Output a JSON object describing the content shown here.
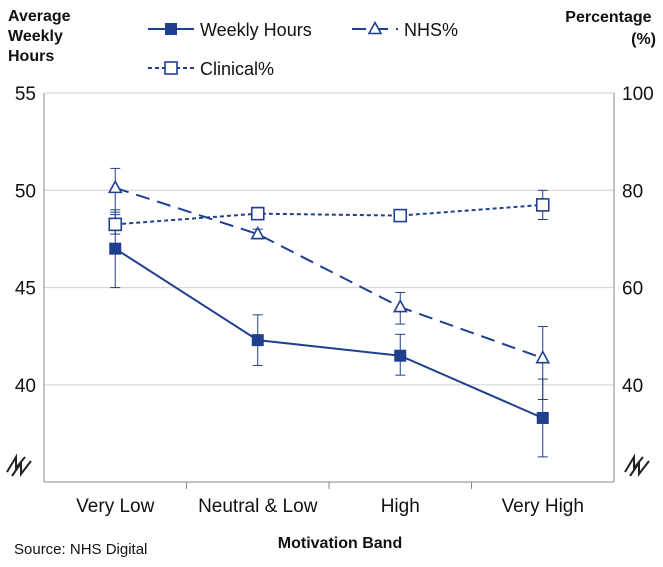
{
  "chart_data": {
    "type": "line",
    "categories": [
      "Very Low",
      "Neutral & Low",
      "High",
      "Very High"
    ],
    "xlabel": "Motivation Band",
    "ylabel_left": [
      "Average",
      "Weekly",
      "Hours"
    ],
    "ylabel_right": [
      "Percentage",
      "(%)"
    ],
    "left_axis": {
      "ticks": [
        "55",
        "50",
        "45",
        "40"
      ],
      "tick_values": [
        55,
        50,
        45,
        40
      ]
    },
    "right_axis": {
      "ticks": [
        "100",
        "80",
        "60",
        "40"
      ],
      "tick_values": [
        100,
        80,
        60,
        40
      ]
    },
    "grid": true,
    "legend_position": "top",
    "source": "Source: NHS Digital",
    "series": [
      {
        "name": "Weekly Hours",
        "axis": "left",
        "style": "solid",
        "marker": "filled-square",
        "color": "#1f3f8f",
        "values": [
          47.0,
          42.3,
          41.5,
          38.3
        ],
        "errors": [
          [
            45.0,
            49.0
          ],
          [
            41.0,
            43.6
          ],
          [
            40.5,
            42.6
          ],
          [
            36.3,
            40.3
          ]
        ]
      },
      {
        "name": "NHS%",
        "axis": "right",
        "style": "dashed",
        "marker": "open-triangle",
        "color": "#1f3f8f",
        "values": [
          80.5,
          71,
          56,
          45.5
        ],
        "errors": [
          [
            75.5,
            84.5
          ],
          [
            70,
            72
          ],
          [
            52.5,
            59
          ],
          [
            37,
            52
          ]
        ]
      },
      {
        "name": "Clinical%",
        "axis": "right",
        "style": "dotted",
        "marker": "open-square",
        "color": "#1f3f8f",
        "values": [
          73,
          75.2,
          74.8,
          77
        ],
        "errors": [
          [
            71,
            75
          ],
          [
            74,
            76.5
          ],
          [
            73.8,
            76
          ],
          [
            74,
            80
          ]
        ]
      }
    ]
  }
}
